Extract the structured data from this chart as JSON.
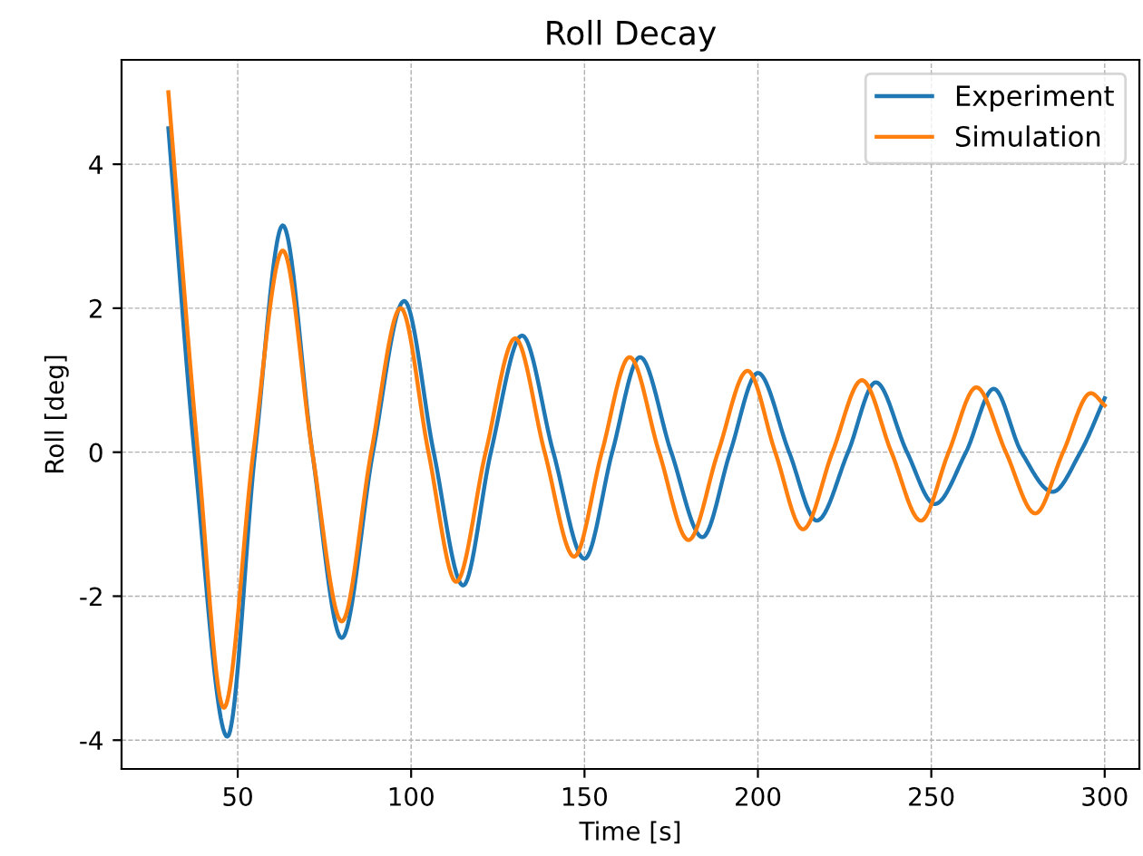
{
  "chart_data": {
    "type": "line",
    "title": "Roll Decay",
    "xlabel": "Time [s]",
    "ylabel": "Roll [deg]",
    "xlim": [
      16.5,
      310
    ],
    "ylim": [
      -4.4,
      5.45
    ],
    "xticks": [
      50,
      100,
      150,
      200,
      250,
      300
    ],
    "yticks": [
      -4,
      -2,
      0,
      2,
      4
    ],
    "grid": true,
    "legend": "top right",
    "line_style": "solid",
    "series": [
      {
        "name": "Experiment",
        "color": "#1f77b4",
        "x": [
          30,
          37.5,
          47,
          55,
          63,
          71.5,
          80,
          89,
          98,
          106.5,
          115,
          123,
          132,
          141,
          150,
          158,
          166,
          175,
          184,
          192,
          200,
          209,
          217,
          226,
          234,
          243,
          251,
          260,
          268,
          276,
          285,
          293,
          300
        ],
        "values": [
          4.5,
          0,
          -3.95,
          0,
          3.15,
          0,
          -2.58,
          0,
          2.1,
          0,
          -1.85,
          0,
          1.62,
          0,
          -1.48,
          0,
          1.32,
          0,
          -1.18,
          0,
          1.1,
          0,
          -0.95,
          0,
          0.97,
          0,
          -0.72,
          0,
          0.88,
          0,
          -0.55,
          0,
          0.75
        ]
      },
      {
        "name": "Simulation",
        "color": "#ff7f0e",
        "x": [
          30,
          38.5,
          46,
          54.5,
          63,
          71.5,
          80,
          88.5,
          97,
          105,
          113,
          121.5,
          130,
          138.5,
          147,
          155,
          163,
          171.5,
          180,
          188.5,
          197,
          205,
          213,
          221.5,
          230,
          238.5,
          247,
          255,
          263,
          271.5,
          280,
          288,
          296,
          300
        ],
        "values": [
          5.0,
          0,
          -3.55,
          0,
          2.8,
          0,
          -2.35,
          0,
          2.0,
          0,
          -1.8,
          0,
          1.58,
          0,
          -1.45,
          0,
          1.32,
          0,
          -1.22,
          0,
          1.13,
          0,
          -1.07,
          0,
          1.0,
          0,
          -0.95,
          0,
          0.9,
          0,
          -0.85,
          0,
          0.82,
          0.65
        ]
      }
    ]
  }
}
